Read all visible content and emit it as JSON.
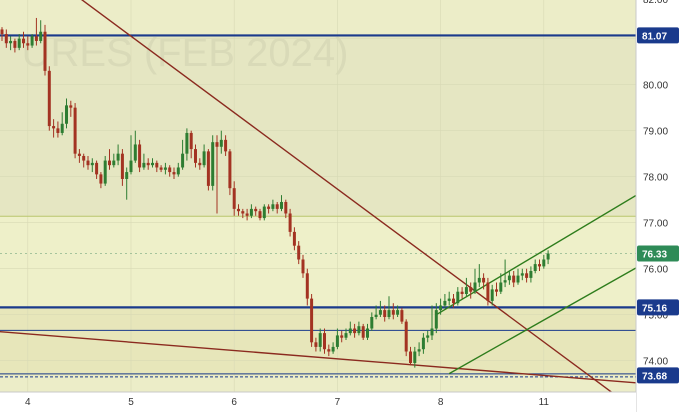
{
  "watermark": "URES (FEB 2024)",
  "colors": {
    "background": "#ecedc8",
    "band_upper": "#e5e6c2",
    "band_mid": "#eef0c9",
    "band_lower": "#e7e6ba",
    "axis_bg": "#ffffff",
    "candle_up": "#2e7d32",
    "candle_down": "#a33322",
    "blue_line": "#1a3a8c",
    "resistance_line": "#8b2a1f",
    "channel_line": "#2e7d1c",
    "price_badge": "#2e8b57",
    "level_badge": "#1a3a8c",
    "label_text": "#ffffff",
    "grid": "#d8d9b5"
  },
  "chart_data": {
    "type": "candlestick",
    "title": "",
    "xlabel": "",
    "ylabel": "",
    "y_axis": {
      "ticks": [
        74.0,
        75.0,
        76.0,
        77.0,
        78.0,
        79.0,
        80.0,
        81.0
      ],
      "tick_labels": [
        "74.00",
        "75.00",
        "76.00",
        "77.00",
        "78.00",
        "79.00",
        "80.00",
        "81.00"
      ],
      "top_partial_label": "82.00",
      "range": [
        73.32,
        81.84
      ]
    },
    "x_axis": {
      "ticks": [
        {
          "label": "4",
          "idx": 6
        },
        {
          "label": "5",
          "idx": 30
        },
        {
          "label": "6",
          "idx": 54
        },
        {
          "label": "7",
          "idx": 78
        },
        {
          "label": "8",
          "idx": 102
        },
        {
          "label": "11",
          "idx": 126
        }
      ],
      "bars_visible": 144
    },
    "current_price": 76.33,
    "horizontal_levels": [
      {
        "value": 81.07,
        "label": "81.07",
        "style": "thick"
      },
      {
        "value": 75.16,
        "label": "75.16",
        "style": "thick"
      },
      {
        "value": 74.66,
        "label": "",
        "style": "thin"
      },
      {
        "value": 73.68,
        "label": "73.68",
        "style": "double"
      }
    ],
    "trend_lines": [
      {
        "name": "descending-resistance",
        "x1": -1,
        "y1": 83.2,
        "x2": 142,
        "y2": 73.3,
        "color_key": "resistance_line"
      },
      {
        "name": "long-support",
        "x1": -3,
        "y1": 74.65,
        "x2": 150,
        "y2": 73.5,
        "color_key": "resistance_line"
      },
      {
        "name": "channel-upper",
        "x1": 101,
        "y1": 75.0,
        "x2": 149,
        "y2": 77.68,
        "color_key": "channel_line"
      },
      {
        "name": "channel-lower",
        "x1": 104,
        "y1": 73.72,
        "x2": 149,
        "y2": 76.1,
        "color_key": "channel_line"
      }
    ],
    "candles": [
      [
        81.2,
        81.1,
        81.25,
        80.95
      ],
      [
        81.1,
        80.9,
        81.2,
        80.8
      ],
      [
        80.9,
        80.95,
        81.05,
        80.75
      ],
      [
        80.95,
        80.8,
        81.0,
        80.7
      ],
      [
        80.8,
        81.0,
        81.1,
        80.75
      ],
      [
        81.0,
        80.9,
        81.15,
        80.8
      ],
      [
        80.9,
        80.85,
        81.05,
        80.75
      ],
      [
        80.85,
        81.05,
        81.1,
        80.8
      ],
      [
        81.05,
        80.95,
        81.45,
        80.85
      ],
      [
        80.95,
        81.15,
        81.4,
        80.9
      ],
      [
        81.15,
        80.3,
        81.3,
        80.2
      ],
      [
        80.3,
        79.1,
        80.4,
        79.0
      ],
      [
        79.1,
        79.05,
        79.25,
        78.85
      ],
      [
        79.05,
        78.95,
        79.2,
        78.85
      ],
      [
        78.95,
        79.15,
        79.4,
        78.9
      ],
      [
        79.15,
        79.55,
        79.7,
        79.05
      ],
      [
        79.55,
        79.5,
        79.65,
        79.3
      ],
      [
        79.5,
        78.5,
        79.6,
        78.4
      ],
      [
        78.5,
        78.45,
        78.6,
        78.3
      ],
      [
        78.45,
        78.35,
        78.5,
        78.2
      ],
      [
        78.35,
        78.25,
        78.45,
        78.15
      ],
      [
        78.25,
        78.3,
        78.4,
        78.1
      ],
      [
        78.3,
        78.05,
        78.35,
        77.95
      ],
      [
        78.05,
        77.85,
        78.1,
        77.75
      ],
      [
        77.85,
        78.35,
        78.45,
        77.8
      ],
      [
        78.35,
        78.25,
        78.6,
        78.15
      ],
      [
        78.25,
        78.35,
        78.5,
        78.2
      ],
      [
        78.35,
        78.5,
        78.7,
        78.25
      ],
      [
        78.5,
        77.95,
        78.6,
        77.8
      ],
      [
        77.95,
        78.1,
        78.2,
        77.5
      ],
      [
        78.1,
        78.35,
        78.9,
        78.05
      ],
      [
        78.35,
        78.7,
        79.0,
        78.3
      ],
      [
        78.7,
        78.2,
        78.8,
        78.1
      ],
      [
        78.2,
        78.3,
        78.5,
        78.15
      ],
      [
        78.3,
        78.25,
        78.4,
        78.15
      ],
      [
        78.25,
        78.3,
        78.4,
        78.2
      ],
      [
        78.3,
        78.2,
        78.35,
        78.1
      ],
      [
        78.2,
        78.15,
        78.25,
        78.1
      ],
      [
        78.15,
        78.2,
        78.3,
        78.05
      ],
      [
        78.2,
        78.1,
        78.25,
        78.0
      ],
      [
        78.1,
        78.05,
        78.2,
        77.95
      ],
      [
        78.05,
        78.2,
        78.3,
        78.0
      ],
      [
        78.2,
        78.5,
        78.8,
        78.15
      ],
      [
        78.5,
        78.95,
        79.05,
        78.35
      ],
      [
        78.95,
        78.6,
        79.0,
        78.4
      ],
      [
        78.6,
        78.3,
        78.7,
        78.2
      ],
      [
        78.3,
        78.25,
        78.4,
        78.15
      ],
      [
        78.25,
        78.55,
        78.7,
        78.2
      ],
      [
        78.55,
        77.8,
        78.6,
        77.7
      ],
      [
        77.8,
        78.75,
        78.9,
        77.7
      ],
      [
        78.75,
        78.65,
        78.9,
        77.2
      ],
      [
        78.65,
        78.8,
        79.0,
        78.5
      ],
      [
        78.8,
        78.55,
        78.9,
        78.45
      ],
      [
        78.55,
        77.75,
        78.6,
        77.6
      ],
      [
        77.75,
        77.3,
        77.9,
        77.15
      ],
      [
        77.3,
        77.25,
        77.4,
        77.15
      ],
      [
        77.25,
        77.2,
        77.3,
        77.1
      ],
      [
        77.2,
        77.15,
        77.3,
        77.05
      ],
      [
        77.15,
        77.3,
        77.4,
        77.1
      ],
      [
        77.3,
        77.25,
        77.35,
        77.15
      ],
      [
        77.25,
        77.1,
        77.3,
        77.05
      ],
      [
        77.1,
        77.35,
        77.4,
        77.05
      ],
      [
        77.35,
        77.3,
        77.4,
        77.2
      ],
      [
        77.3,
        77.4,
        77.5,
        77.25
      ],
      [
        77.4,
        77.3,
        77.45,
        77.2
      ],
      [
        77.3,
        77.45,
        77.6,
        77.25
      ],
      [
        77.45,
        77.2,
        77.5,
        77.1
      ],
      [
        77.2,
        76.8,
        77.3,
        76.7
      ],
      [
        76.8,
        76.5,
        76.9,
        76.4
      ],
      [
        76.5,
        76.2,
        76.6,
        76.1
      ],
      [
        76.2,
        75.9,
        76.3,
        75.8
      ],
      [
        75.9,
        75.35,
        76.0,
        75.2
      ],
      [
        75.35,
        74.4,
        75.45,
        74.3
      ],
      [
        74.4,
        74.3,
        74.5,
        74.2
      ],
      [
        74.3,
        74.6,
        74.7,
        74.2
      ],
      [
        74.6,
        74.25,
        74.7,
        74.15
      ],
      [
        74.25,
        74.2,
        74.35,
        74.1
      ],
      [
        74.2,
        74.3,
        74.4,
        74.15
      ],
      [
        74.3,
        74.55,
        74.7,
        74.25
      ],
      [
        74.55,
        74.5,
        74.65,
        74.4
      ],
      [
        74.5,
        74.6,
        74.7,
        74.45
      ],
      [
        74.6,
        74.7,
        74.85,
        74.55
      ],
      [
        74.7,
        74.6,
        74.8,
        74.5
      ],
      [
        74.6,
        74.75,
        74.85,
        74.55
      ],
      [
        74.75,
        74.5,
        74.8,
        74.45
      ],
      [
        74.5,
        74.7,
        74.8,
        74.45
      ],
      [
        74.7,
        74.95,
        75.05,
        74.65
      ],
      [
        74.95,
        75.0,
        75.2,
        74.9
      ],
      [
        75.0,
        75.1,
        75.3,
        74.95
      ],
      [
        75.1,
        74.95,
        75.2,
        74.85
      ],
      [
        74.95,
        75.1,
        75.4,
        74.9
      ],
      [
        75.1,
        75.0,
        75.25,
        74.9
      ],
      [
        75.0,
        75.1,
        75.2,
        74.95
      ],
      [
        75.1,
        74.85,
        75.15,
        74.8
      ],
      [
        74.85,
        74.2,
        74.9,
        74.1
      ],
      [
        74.2,
        73.95,
        74.3,
        73.9
      ],
      [
        73.95,
        74.2,
        74.3,
        73.85
      ],
      [
        74.2,
        74.25,
        74.4,
        74.1
      ],
      [
        74.25,
        74.5,
        74.6,
        74.15
      ],
      [
        74.5,
        74.55,
        74.65,
        74.4
      ],
      [
        74.55,
        74.7,
        75.2,
        74.45
      ],
      [
        74.7,
        75.1,
        75.25,
        74.6
      ],
      [
        75.1,
        75.2,
        75.35,
        75.0
      ],
      [
        75.2,
        75.3,
        75.45,
        75.15
      ],
      [
        75.3,
        75.35,
        75.5,
        75.2
      ],
      [
        75.35,
        75.25,
        75.45,
        75.15
      ],
      [
        75.25,
        75.5,
        75.6,
        75.2
      ],
      [
        75.5,
        75.45,
        75.6,
        75.35
      ],
      [
        75.45,
        75.6,
        75.8,
        75.4
      ],
      [
        75.6,
        75.5,
        75.7,
        75.35
      ],
      [
        75.5,
        75.7,
        76.0,
        75.45
      ],
      [
        75.7,
        75.8,
        76.1,
        75.6
      ],
      [
        75.8,
        75.7,
        75.9,
        75.55
      ],
      [
        75.7,
        75.3,
        75.8,
        75.2
      ],
      [
        75.3,
        75.55,
        75.65,
        75.2
      ],
      [
        75.55,
        75.5,
        75.7,
        75.4
      ],
      [
        75.5,
        75.7,
        75.9,
        75.45
      ],
      [
        75.7,
        75.75,
        76.2,
        75.6
      ],
      [
        75.75,
        75.85,
        75.95,
        75.65
      ],
      [
        75.85,
        75.7,
        75.95,
        75.6
      ],
      [
        75.7,
        75.85,
        76.0,
        75.65
      ],
      [
        75.85,
        75.9,
        76.0,
        75.75
      ],
      [
        75.9,
        75.8,
        76.0,
        75.7
      ],
      [
        75.8,
        75.95,
        76.05,
        75.7
      ],
      [
        75.95,
        76.1,
        76.2,
        75.9
      ],
      [
        76.1,
        76.05,
        76.2,
        75.95
      ],
      [
        76.05,
        76.2,
        76.3,
        76.0
      ],
      [
        76.2,
        76.33,
        76.4,
        76.1
      ]
    ]
  }
}
